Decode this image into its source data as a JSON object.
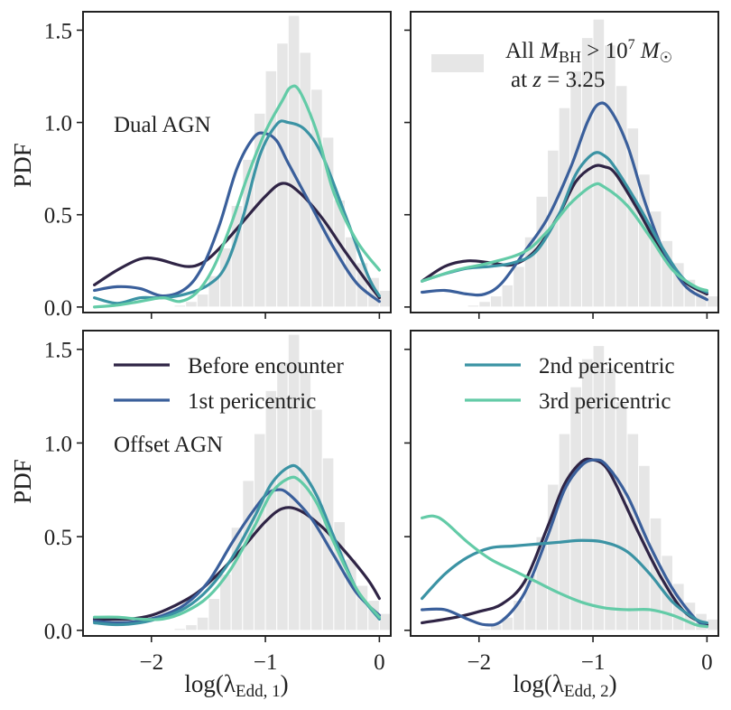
{
  "chart_data": [
    {
      "type": "line",
      "panel": "top-left",
      "annotation": "Dual AGN",
      "ylabel": "PDF",
      "xlabel": "",
      "xlim": [
        -2.6,
        0.1
      ],
      "ylim": [
        -0.03,
        1.6
      ],
      "xticks": [
        -2,
        -1,
        0
      ],
      "yticks": [
        0.0,
        0.5,
        1.0,
        1.5
      ],
      "ytick_labels": [
        "0.0",
        "0.5",
        "1.0",
        "1.5"
      ],
      "show_xtick_labels": false,
      "show_ytick_labels": true,
      "histogram": {
        "bin_start": -2.5,
        "bin_width": 0.1,
        "values": [
          0.0,
          0.0,
          0.0,
          0.0,
          0.0,
          0.0,
          0.0,
          0.01,
          0.03,
          0.07,
          0.17,
          0.32,
          0.55,
          0.8,
          1.05,
          1.28,
          1.43,
          1.58,
          1.38,
          1.18,
          0.92,
          0.58,
          0.38,
          0.24,
          0.16,
          0.09,
          0.05,
          0.03,
          0.02,
          0.01,
          0.005,
          0.0,
          0.0
        ]
      },
      "series": [
        {
          "name": "Before encounter",
          "color": "#2f2445",
          "x": [
            -2.5,
            -2.3,
            -2.1,
            -1.95,
            -1.7,
            -1.55,
            -1.4,
            -1.2,
            -1.0,
            -0.85,
            -0.7,
            -0.5,
            -0.3,
            -0.1,
            0.0
          ],
          "y": [
            0.12,
            0.2,
            0.26,
            0.26,
            0.22,
            0.24,
            0.32,
            0.46,
            0.6,
            0.67,
            0.62,
            0.48,
            0.3,
            0.13,
            0.05
          ]
        },
        {
          "name": "1st pericentric",
          "color": "#3a5f9b",
          "x": [
            -2.5,
            -2.3,
            -2.1,
            -1.9,
            -1.7,
            -1.55,
            -1.4,
            -1.25,
            -1.1,
            -1.0,
            -0.9,
            -0.8,
            -0.6,
            -0.4,
            -0.2,
            0.0
          ],
          "y": [
            0.09,
            0.11,
            0.1,
            0.06,
            0.1,
            0.22,
            0.45,
            0.75,
            0.92,
            0.94,
            0.9,
            0.78,
            0.55,
            0.32,
            0.13,
            0.03
          ]
        },
        {
          "name": "2nd pericentric",
          "color": "#3b93a4",
          "x": [
            -2.5,
            -2.3,
            -2.1,
            -1.9,
            -1.7,
            -1.5,
            -1.35,
            -1.2,
            -1.05,
            -0.9,
            -0.8,
            -0.65,
            -0.5,
            -0.3,
            -0.1,
            0.0
          ],
          "y": [
            0.05,
            0.02,
            0.05,
            0.05,
            0.07,
            0.12,
            0.22,
            0.48,
            0.82,
            0.99,
            1.0,
            0.96,
            0.82,
            0.5,
            0.17,
            0.06
          ]
        },
        {
          "name": "3rd pericentric",
          "color": "#63cba7",
          "x": [
            -2.5,
            -2.3,
            -2.1,
            -1.9,
            -1.75,
            -1.6,
            -1.45,
            -1.3,
            -1.15,
            -1.0,
            -0.85,
            -0.78,
            -0.7,
            -0.55,
            -0.4,
            -0.2,
            0.0
          ],
          "y": [
            0.0,
            0.01,
            0.03,
            0.05,
            0.03,
            0.08,
            0.22,
            0.45,
            0.72,
            0.95,
            1.12,
            1.19,
            1.17,
            0.95,
            0.62,
            0.36,
            0.2
          ]
        }
      ]
    },
    {
      "type": "line",
      "panel": "top-right",
      "legend_hist_label_line1": "All M_BH > 10^7 M_sun",
      "legend_hist_label_line2": "at z = 3.25",
      "xlim": [
        -2.6,
        0.1
      ],
      "ylim": [
        -0.03,
        1.6
      ],
      "xticks": [
        -2,
        -1,
        0
      ],
      "yticks": [
        0.0,
        0.5,
        1.0,
        1.5
      ],
      "show_xtick_labels": false,
      "show_ytick_labels": false,
      "histogram": {
        "bin_start": -2.5,
        "bin_width": 0.1,
        "values": [
          0.0,
          0.0,
          0.0,
          0.0,
          0.01,
          0.03,
          0.06,
          0.12,
          0.22,
          0.38,
          0.6,
          0.85,
          1.08,
          1.28,
          1.46,
          1.56,
          1.42,
          1.2,
          0.97,
          0.72,
          0.52,
          0.36,
          0.24,
          0.15,
          0.09,
          0.06,
          0.04,
          0.02,
          0.01,
          0.005,
          0.0,
          0.0,
          0.0
        ]
      },
      "series": [
        {
          "name": "Before encounter",
          "color": "#2f2445",
          "x": [
            -2.5,
            -2.3,
            -2.1,
            -1.9,
            -1.7,
            -1.5,
            -1.3,
            -1.15,
            -1.0,
            -0.9,
            -0.8,
            -0.6,
            -0.4,
            -0.2,
            0.0
          ],
          "y": [
            0.14,
            0.22,
            0.25,
            0.24,
            0.23,
            0.31,
            0.5,
            0.68,
            0.76,
            0.76,
            0.72,
            0.52,
            0.3,
            0.14,
            0.07
          ]
        },
        {
          "name": "1st pericentric",
          "color": "#3a5f9b",
          "x": [
            -2.5,
            -2.3,
            -2.1,
            -1.95,
            -1.8,
            -1.6,
            -1.4,
            -1.2,
            -1.05,
            -0.95,
            -0.85,
            -0.7,
            -0.55,
            -0.4,
            -0.2,
            0.0
          ],
          "y": [
            0.08,
            0.09,
            0.07,
            0.07,
            0.13,
            0.3,
            0.48,
            0.75,
            1.0,
            1.1,
            1.07,
            0.88,
            0.58,
            0.33,
            0.12,
            0.04
          ]
        },
        {
          "name": "2nd pericentric",
          "color": "#3b93a4",
          "x": [
            -2.5,
            -2.3,
            -2.1,
            -1.9,
            -1.7,
            -1.5,
            -1.3,
            -1.15,
            -1.0,
            -0.9,
            -0.8,
            -0.6,
            -0.4,
            -0.2,
            0.0
          ],
          "y": [
            0.14,
            0.18,
            0.21,
            0.22,
            0.24,
            0.3,
            0.5,
            0.72,
            0.83,
            0.82,
            0.75,
            0.55,
            0.33,
            0.15,
            0.08
          ]
        },
        {
          "name": "3rd pericentric",
          "color": "#63cba7",
          "x": [
            -2.5,
            -2.2,
            -1.9,
            -1.6,
            -1.4,
            -1.2,
            -1.0,
            -0.9,
            -0.7,
            -0.5,
            -0.3,
            -0.1,
            0.0
          ],
          "y": [
            0.14,
            0.2,
            0.24,
            0.3,
            0.41,
            0.56,
            0.66,
            0.65,
            0.55,
            0.38,
            0.2,
            0.11,
            0.09
          ]
        }
      ]
    },
    {
      "type": "line",
      "panel": "bottom-left",
      "annotation": "Offset AGN",
      "ylabel": "PDF",
      "xlabel": "log(λ_Edd, 1)",
      "xlabel_main": "log(λ",
      "xlabel_sub": "Edd, 1",
      "xlabel_close": ")",
      "xlim": [
        -2.6,
        0.1
      ],
      "ylim": [
        -0.03,
        1.6
      ],
      "xticks": [
        -2,
        -1,
        0
      ],
      "xtick_labels": [
        "−2",
        "−1",
        "0"
      ],
      "yticks": [
        0.0,
        0.5,
        1.0,
        1.5
      ],
      "ytick_labels": [
        "0.0",
        "0.5",
        "1.0",
        "1.5"
      ],
      "show_xtick_labels": true,
      "show_ytick_labels": true,
      "histogram": {
        "bin_start": -2.5,
        "bin_width": 0.1,
        "values": [
          0.0,
          0.0,
          0.0,
          0.0,
          0.0,
          0.0,
          0.0,
          0.01,
          0.03,
          0.07,
          0.17,
          0.3,
          0.55,
          0.8,
          1.05,
          1.28,
          1.43,
          1.58,
          1.38,
          1.18,
          0.92,
          0.58,
          0.38,
          0.24,
          0.16,
          0.09,
          0.05,
          0.03,
          0.02,
          0.01,
          0.005,
          0.0,
          0.0
        ]
      },
      "series": [
        {
          "name": "Before encounter",
          "color": "#2f2445",
          "x": [
            -2.5,
            -2.2,
            -2.0,
            -1.8,
            -1.6,
            -1.4,
            -1.2,
            -1.0,
            -0.85,
            -0.7,
            -0.5,
            -0.3,
            -0.1,
            0.0
          ],
          "y": [
            0.06,
            0.06,
            0.08,
            0.13,
            0.2,
            0.31,
            0.44,
            0.58,
            0.65,
            0.64,
            0.55,
            0.42,
            0.27,
            0.17
          ]
        },
        {
          "name": "1st pericentric",
          "color": "#3a5f9b",
          "x": [
            -2.5,
            -2.3,
            -2.1,
            -1.9,
            -1.7,
            -1.5,
            -1.3,
            -1.15,
            -1.0,
            -0.9,
            -0.8,
            -0.6,
            -0.4,
            -0.2,
            0.0
          ],
          "y": [
            0.05,
            0.04,
            0.05,
            0.08,
            0.14,
            0.26,
            0.46,
            0.6,
            0.72,
            0.75,
            0.73,
            0.6,
            0.4,
            0.2,
            0.08
          ]
        },
        {
          "name": "2nd pericentric",
          "color": "#3b93a4",
          "x": [
            -2.5,
            -2.3,
            -2.1,
            -1.9,
            -1.7,
            -1.5,
            -1.3,
            -1.1,
            -0.95,
            -0.8,
            -0.7,
            -0.55,
            -0.4,
            -0.2,
            0.0
          ],
          "y": [
            0.04,
            0.03,
            0.04,
            0.07,
            0.12,
            0.22,
            0.38,
            0.6,
            0.78,
            0.87,
            0.86,
            0.72,
            0.5,
            0.22,
            0.06
          ]
        },
        {
          "name": "3rd pericentric",
          "color": "#63cba7",
          "x": [
            -2.5,
            -2.3,
            -2.1,
            -1.9,
            -1.7,
            -1.5,
            -1.3,
            -1.1,
            -0.95,
            -0.8,
            -0.7,
            -0.55,
            -0.4,
            -0.2,
            0.0
          ],
          "y": [
            0.07,
            0.07,
            0.06,
            0.06,
            0.1,
            0.18,
            0.33,
            0.55,
            0.73,
            0.81,
            0.8,
            0.68,
            0.47,
            0.22,
            0.07
          ]
        }
      ]
    },
    {
      "type": "line",
      "panel": "bottom-right",
      "xlabel": "log(λ_Edd, 2)",
      "xlabel_main": "log(λ",
      "xlabel_sub": "Edd, 2",
      "xlabel_close": ")",
      "xlim": [
        -2.6,
        0.1
      ],
      "ylim": [
        -0.03,
        1.6
      ],
      "xticks": [
        -2,
        -1,
        0
      ],
      "xtick_labels": [
        "−2",
        "−1",
        "0"
      ],
      "yticks": [
        0.0,
        0.5,
        1.0,
        1.5
      ],
      "show_xtick_labels": true,
      "show_ytick_labels": false,
      "histogram": {
        "bin_start": -2.5,
        "bin_width": 0.1,
        "values": [
          0.0,
          0.0,
          0.0,
          0.0,
          0.005,
          0.01,
          0.03,
          0.07,
          0.16,
          0.3,
          0.5,
          0.78,
          1.05,
          1.3,
          1.45,
          1.52,
          1.4,
          1.22,
          1.05,
          0.88,
          0.6,
          0.4,
          0.25,
          0.15,
          0.09,
          0.06,
          0.04,
          0.02,
          0.01,
          0.005,
          0.0,
          0.0,
          0.0
        ]
      },
      "series": [
        {
          "name": "Before encounter",
          "color": "#2f2445",
          "x": [
            -2.5,
            -2.2,
            -2.0,
            -1.8,
            -1.6,
            -1.4,
            -1.25,
            -1.1,
            -1.0,
            -0.9,
            -0.8,
            -0.6,
            -0.4,
            -0.2,
            0.0
          ],
          "y": [
            0.04,
            0.07,
            0.1,
            0.14,
            0.26,
            0.55,
            0.78,
            0.9,
            0.91,
            0.88,
            0.78,
            0.52,
            0.28,
            0.1,
            0.03
          ]
        },
        {
          "name": "1st pericentric",
          "color": "#3a5f9b",
          "x": [
            -2.5,
            -2.3,
            -2.1,
            -1.95,
            -1.8,
            -1.6,
            -1.4,
            -1.25,
            -1.1,
            -0.98,
            -0.88,
            -0.7,
            -0.5,
            -0.3,
            -0.1,
            0.0
          ],
          "y": [
            0.11,
            0.11,
            0.06,
            0.03,
            0.05,
            0.2,
            0.5,
            0.75,
            0.88,
            0.91,
            0.88,
            0.72,
            0.45,
            0.22,
            0.06,
            0.02
          ]
        },
        {
          "name": "2nd pericentric",
          "color": "#3b93a4",
          "x": [
            -2.5,
            -2.3,
            -2.1,
            -1.9,
            -1.7,
            -1.5,
            -1.3,
            -1.1,
            -0.9,
            -0.7,
            -0.5,
            -0.3,
            -0.1,
            0.0
          ],
          "y": [
            0.17,
            0.3,
            0.39,
            0.44,
            0.45,
            0.46,
            0.47,
            0.48,
            0.47,
            0.42,
            0.3,
            0.15,
            0.06,
            0.04
          ]
        },
        {
          "name": "3rd pericentric",
          "color": "#63cba7",
          "x": [
            -2.5,
            -2.4,
            -2.3,
            -2.1,
            -1.9,
            -1.7,
            -1.5,
            -1.3,
            -1.1,
            -0.9,
            -0.7,
            -0.5,
            -0.3,
            -0.1,
            0.0
          ],
          "y": [
            0.6,
            0.61,
            0.58,
            0.47,
            0.38,
            0.32,
            0.26,
            0.2,
            0.15,
            0.12,
            0.11,
            0.11,
            0.08,
            0.03,
            0.02
          ]
        }
      ]
    }
  ],
  "legend": {
    "hist_label_prefix": "All ",
    "hist_label_M": "M",
    "hist_label_M_sub": "BH",
    "hist_label_gt": " > 10",
    "hist_label_exp": "7",
    "hist_label_M2": " M",
    "hist_label_sun": "☉",
    "hist_label_line2_prefix": "at ",
    "hist_label_z": "z",
    "hist_label_line2_value": " = 3.25",
    "entries": [
      "Before encounter",
      "1st pericentric",
      "2nd pericentric",
      "3rd pericentric"
    ]
  },
  "colors": {
    "before": "#2f2445",
    "first": "#3a5f9b",
    "second": "#3b93a4",
    "third": "#63cba7",
    "hist": "#e6e6e6",
    "axis": "#222222"
  }
}
